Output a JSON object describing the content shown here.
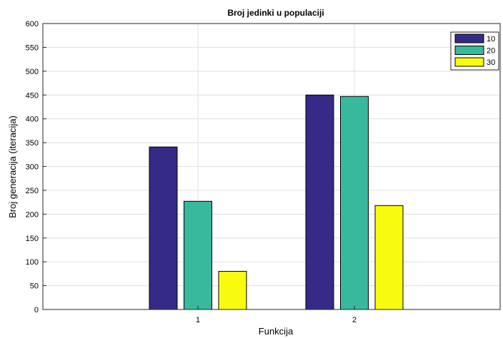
{
  "chart_data": {
    "type": "bar",
    "title": "Broj jedinki u populaciji",
    "xlabel": "Funkcija",
    "ylabel": "Broj generacija (iteracija)",
    "categories": [
      "1",
      "2"
    ],
    "series": [
      {
        "name": "10",
        "color": "#352a87",
        "values": [
          341,
          450
        ]
      },
      {
        "name": "20",
        "color": "#38b99e",
        "values": [
          227,
          447
        ]
      },
      {
        "name": "30",
        "color": "#f9fb0e",
        "values": [
          80,
          218
        ]
      }
    ],
    "ylim": [
      0,
      600
    ],
    "yticks": [
      0,
      50,
      100,
      150,
      200,
      250,
      300,
      350,
      400,
      450,
      500,
      550,
      600
    ],
    "grid": true,
    "legend_position": "top-right"
  }
}
